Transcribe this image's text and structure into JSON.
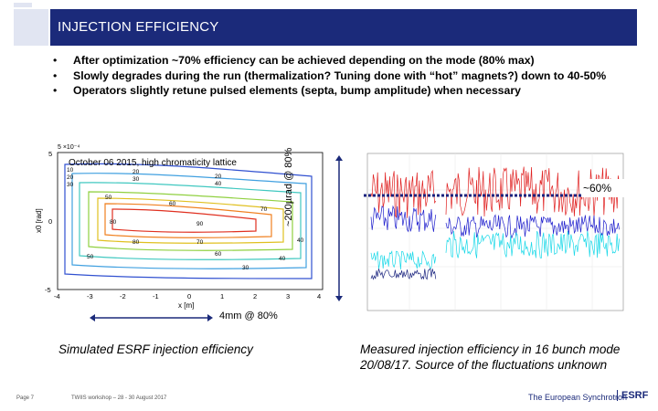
{
  "title": "INJECTION EFFICIENCY",
  "bullets": [
    "After optimization ~70% efficiency can be achieved depending on the mode (80%  max)",
    "Slowly degrades during the run (thermalization? Tuning done with “hot” magnets?) down to 40-50%",
    "Operators slightly retune pulsed elements (septa, bump amplitude) when necessary"
  ],
  "left_chart": {
    "subtitle": "October 06 2015, high chromaticity lattice",
    "y_scale": "5 ×10⁻⁴",
    "ylabel": "x0 [rad]",
    "xlabel": "x [m]",
    "x_ticks": [
      "-4",
      "-3",
      "-2",
      "-1",
      "0",
      "1",
      "2",
      "3",
      "4"
    ],
    "y_ticks": [
      "5",
      "0",
      "-5"
    ],
    "contour_labels": [
      "10",
      "20",
      "30",
      "40",
      "50",
      "60",
      "70",
      "80",
      "90"
    ],
    "side_annotation": "~200µrad @ 80%",
    "bottom_annotation": "4mm @ 80%"
  },
  "right_chart": {
    "annotation": "~60%",
    "colors": {
      "red": "#e02020",
      "blue": "#1c1ccc",
      "cyan": "#17d8e8",
      "dark_blue": "#1a237e"
    }
  },
  "captions": {
    "left": "Simulated ESRF injection efficiency",
    "right": "Measured injection efficiency in 16 bunch mode 20/08/17. Source of the fluctuations unknown"
  },
  "footer": {
    "page": "Page 7",
    "workshop": "TWIIS workshop – 28 - 30 August 2017",
    "org": "The European Synchrotron",
    "logo": "ESRF"
  }
}
